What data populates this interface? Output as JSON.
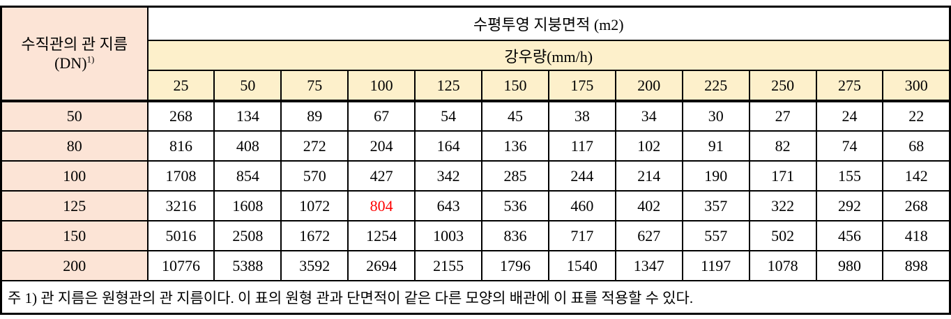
{
  "table": {
    "row_header_title": "수직관의 관 지름",
    "row_header_subtitle": "(DN)",
    "row_header_superscript": "1)",
    "col_group_title": "수평투영 지붕면적 (m2)",
    "col_subgroup_title": "강우량(mm/h)",
    "rainfall_columns": [
      "25",
      "50",
      "75",
      "100",
      "125",
      "150",
      "175",
      "200",
      "225",
      "250",
      "275",
      "300"
    ],
    "rows": [
      {
        "dn": "50",
        "values": [
          "268",
          "134",
          "89",
          "67",
          "54",
          "45",
          "38",
          "34",
          "30",
          "27",
          "24",
          "22"
        ]
      },
      {
        "dn": "80",
        "values": [
          "816",
          "408",
          "272",
          "204",
          "164",
          "136",
          "117",
          "102",
          "91",
          "82",
          "74",
          "68"
        ]
      },
      {
        "dn": "100",
        "values": [
          "1708",
          "854",
          "570",
          "427",
          "342",
          "285",
          "244",
          "214",
          "190",
          "171",
          "155",
          "142"
        ]
      },
      {
        "dn": "125",
        "values": [
          "3216",
          "1608",
          "1072",
          "804",
          "643",
          "536",
          "460",
          "402",
          "357",
          "322",
          "292",
          "268"
        ]
      },
      {
        "dn": "150",
        "values": [
          "5016",
          "2508",
          "1672",
          "1254",
          "1003",
          "836",
          "717",
          "627",
          "557",
          "502",
          "456",
          "418"
        ]
      },
      {
        "dn": "200",
        "values": [
          "10776",
          "5388",
          "3592",
          "2694",
          "2155",
          "1796",
          "1540",
          "1347",
          "1197",
          "1078",
          "980",
          "898"
        ]
      }
    ],
    "highlight": {
      "row_index": 3,
      "col_index": 3
    }
  },
  "footnote": "주 1) 관 지름은 원형관의 관 지름이다. 이 표의 원형 관과 단면적이 같은 다른 모양의 배관에 이 표를 적용할 수 있다.",
  "colors": {
    "row_header_bg": "#fce4d6",
    "col_header_bg": "#fdf0cb",
    "border": "#000000",
    "highlight_text": "#fe0000"
  }
}
